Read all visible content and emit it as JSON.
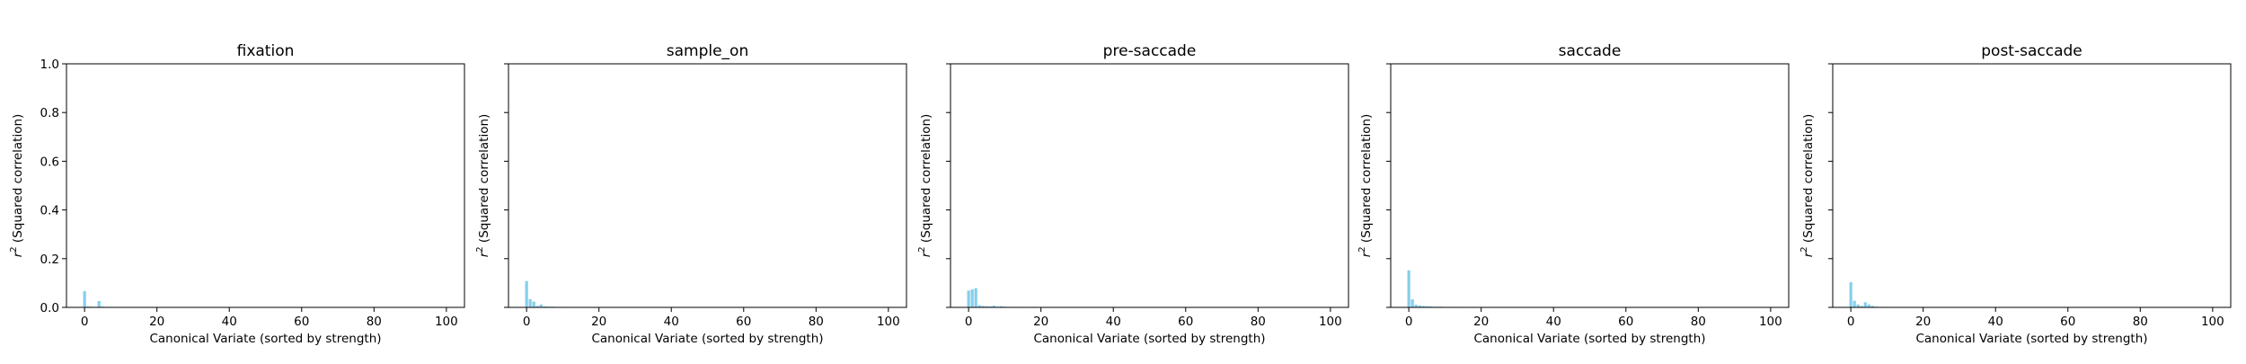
{
  "colors": {
    "bar": "#87CEEB",
    "axes": "#000000",
    "background": "#ffffff"
  },
  "chart_data": [
    {
      "type": "bar",
      "title": "fixation",
      "xlabel": "Canonical Variate (sorted by strength)",
      "ylabel_var": "r",
      "ylabel_sup": "2",
      "ylabel_rest": " (Squared correlation)",
      "xlim": [
        -5,
        105
      ],
      "ylim": [
        0,
        1.0
      ],
      "xticks": [
        0,
        20,
        40,
        60,
        80,
        100
      ],
      "yticks": [
        "0.0",
        "0.2",
        "0.4",
        "0.6",
        "0.8",
        "1.0"
      ],
      "show_ytick_labels": true,
      "x": [
        0,
        1,
        2,
        3,
        4,
        5,
        6,
        7,
        8,
        9,
        10,
        11,
        12,
        13,
        14,
        15,
        16,
        17,
        18,
        19,
        20
      ],
      "values": [
        0.067,
        0.004,
        0.003,
        0.002,
        0.026,
        0.003,
        0.002,
        0.002,
        0.001,
        0.001,
        0.001,
        0.001,
        0.001,
        0.001,
        0.001,
        0.001,
        0.001,
        0.001,
        0.001,
        0.001,
        0.001
      ]
    },
    {
      "type": "bar",
      "title": "sample_on",
      "xlabel": "Canonical Variate (sorted by strength)",
      "ylabel_var": "r",
      "ylabel_sup": "2",
      "ylabel_rest": " (Squared correlation)",
      "xlim": [
        -5,
        105
      ],
      "ylim": [
        0,
        1.0
      ],
      "xticks": [
        0,
        20,
        40,
        60,
        80,
        100
      ],
      "yticks": [
        "0.0",
        "0.2",
        "0.4",
        "0.6",
        "0.8",
        "1.0"
      ],
      "show_ytick_labels": false,
      "x": [
        0,
        1,
        2,
        3,
        4,
        5,
        6,
        7,
        8,
        9,
        10,
        11,
        12,
        13,
        14,
        15,
        16,
        17,
        18,
        19,
        20
      ],
      "values": [
        0.108,
        0.034,
        0.024,
        0.006,
        0.012,
        0.004,
        0.003,
        0.003,
        0.002,
        0.002,
        0.002,
        0.001,
        0.001,
        0.001,
        0.001,
        0.001,
        0.001,
        0.001,
        0.001,
        0.001,
        0.001
      ]
    },
    {
      "type": "bar",
      "title": "pre-saccade",
      "xlabel": "Canonical Variate (sorted by strength)",
      "ylabel_var": "r",
      "ylabel_sup": "2",
      "ylabel_rest": " (Squared correlation)",
      "xlim": [
        -5,
        105
      ],
      "ylim": [
        0,
        1.0
      ],
      "xticks": [
        0,
        20,
        40,
        60,
        80,
        100
      ],
      "yticks": [
        "0.0",
        "0.2",
        "0.4",
        "0.6",
        "0.8",
        "1.0"
      ],
      "show_ytick_labels": false,
      "x": [
        0,
        1,
        2,
        3,
        4,
        5,
        6,
        7,
        8,
        9,
        10,
        11,
        12,
        13,
        14,
        15,
        16,
        17,
        18,
        19,
        20
      ],
      "values": [
        0.069,
        0.074,
        0.079,
        0.009,
        0.006,
        0.005,
        0.004,
        0.007,
        0.003,
        0.005,
        0.003,
        0.002,
        0.002,
        0.002,
        0.002,
        0.001,
        0.001,
        0.001,
        0.001,
        0.001,
        0.001
      ]
    },
    {
      "type": "bar",
      "title": "saccade",
      "xlabel": "Canonical Variate (sorted by strength)",
      "ylabel_var": "r",
      "ylabel_sup": "2",
      "ylabel_rest": " (Squared correlation)",
      "xlim": [
        -5,
        105
      ],
      "ylim": [
        0,
        1.0
      ],
      "xticks": [
        0,
        20,
        40,
        60,
        80,
        100
      ],
      "yticks": [
        "0.0",
        "0.2",
        "0.4",
        "0.6",
        "0.8",
        "1.0"
      ],
      "show_ytick_labels": false,
      "x": [
        0,
        1,
        2,
        3,
        4,
        5,
        6,
        7,
        8,
        9,
        10,
        11,
        12,
        13,
        14,
        15,
        16,
        17,
        18,
        19,
        20
      ],
      "values": [
        0.152,
        0.033,
        0.011,
        0.008,
        0.006,
        0.005,
        0.004,
        0.003,
        0.003,
        0.003,
        0.002,
        0.002,
        0.002,
        0.002,
        0.002,
        0.001,
        0.001,
        0.001,
        0.001,
        0.001,
        0.001
      ]
    },
    {
      "type": "bar",
      "title": "post-saccade",
      "xlabel": "Canonical Variate (sorted by strength)",
      "ylabel_var": "r",
      "ylabel_sup": "2",
      "ylabel_rest": " (Squared correlation)",
      "xlim": [
        -5,
        105
      ],
      "ylim": [
        0,
        1.0
      ],
      "xticks": [
        0,
        20,
        40,
        60,
        80,
        100
      ],
      "yticks": [
        "0.0",
        "0.2",
        "0.4",
        "0.6",
        "0.8",
        "1.0"
      ],
      "show_ytick_labels": false,
      "x": [
        0,
        1,
        2,
        3,
        4,
        5,
        6,
        7,
        8,
        9,
        10,
        11,
        12,
        13,
        14,
        15,
        16,
        17,
        18,
        19,
        20
      ],
      "values": [
        0.103,
        0.027,
        0.012,
        0.006,
        0.021,
        0.012,
        0.006,
        0.003,
        0.002,
        0.002,
        0.002,
        0.001,
        0.001,
        0.001,
        0.001,
        0.001,
        0.001,
        0.001,
        0.001,
        0.001,
        0.001
      ]
    }
  ]
}
